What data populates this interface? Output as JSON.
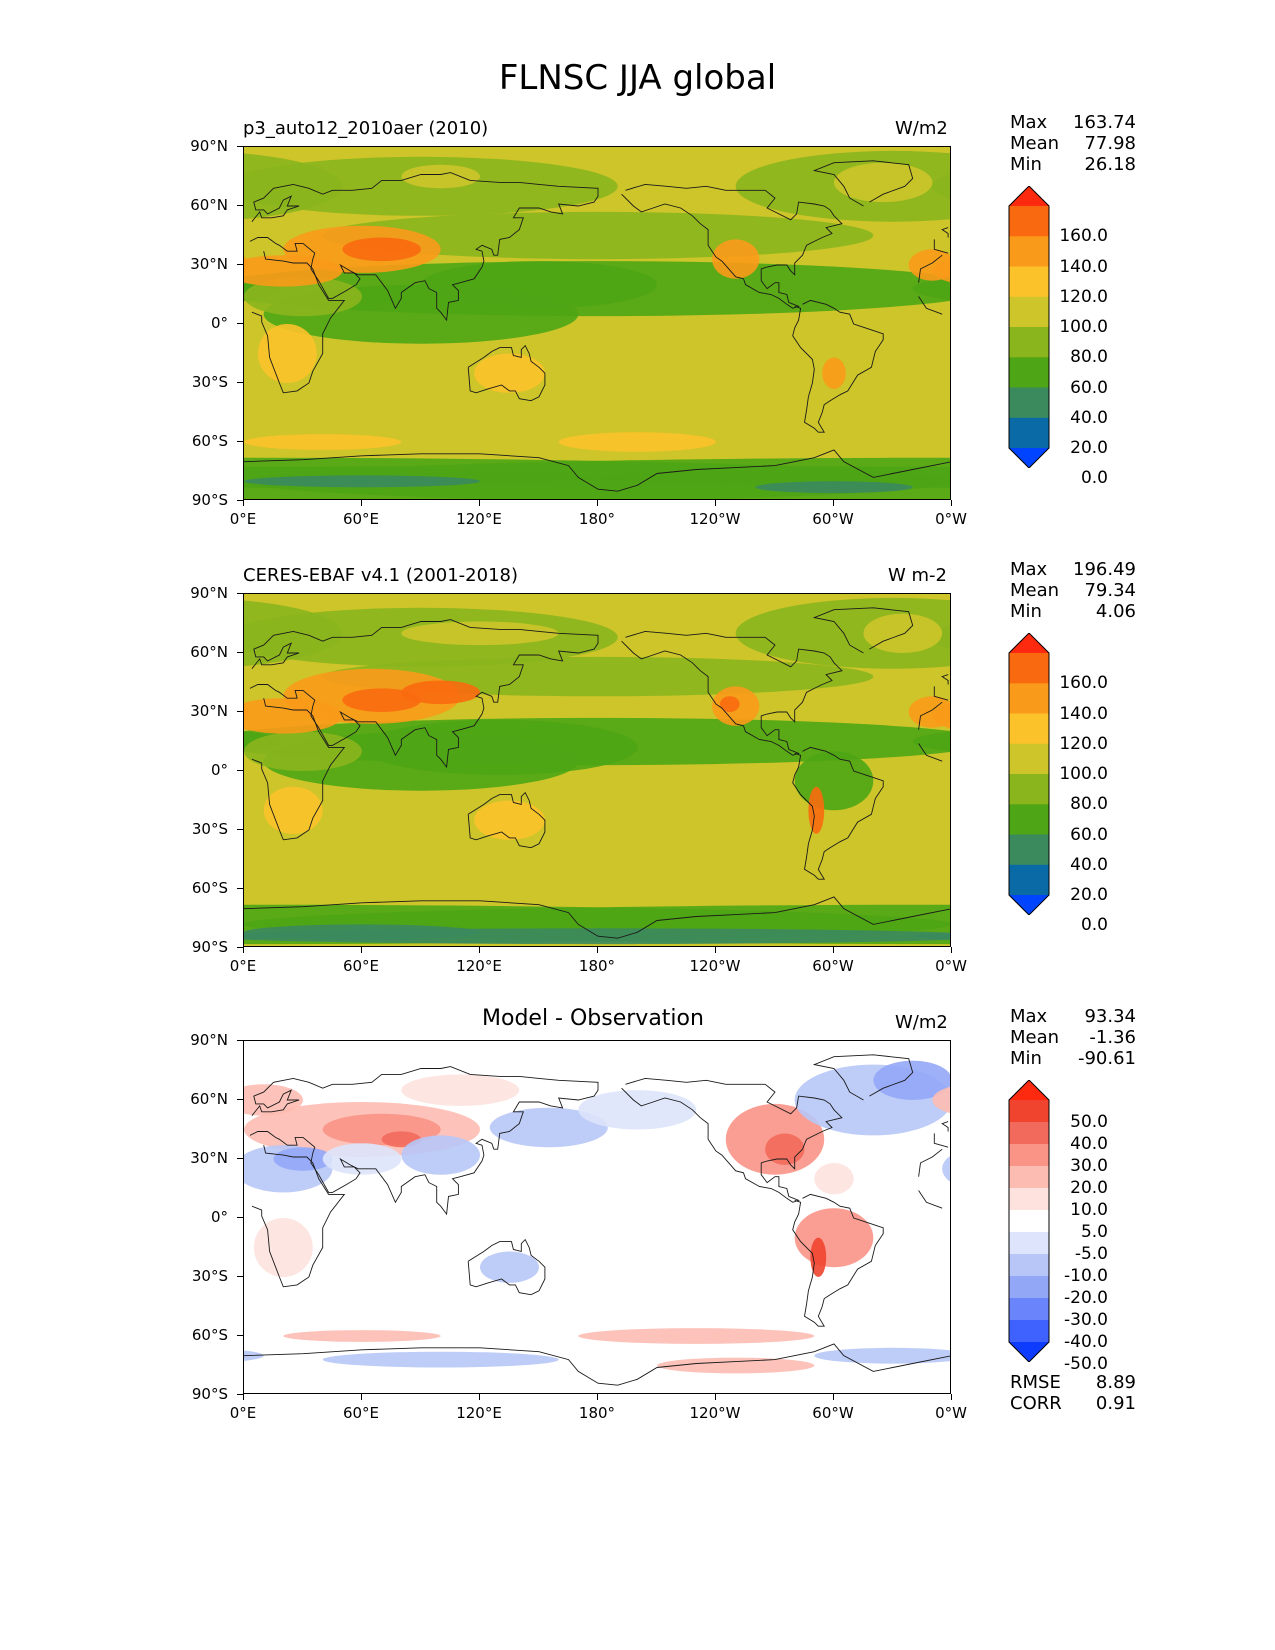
{
  "title": "FLNSC JJA global",
  "colors": {
    "seq": [
      "#0044ff",
      "#0a6aa6",
      "#3b8a5e",
      "#4ea515",
      "#8bb51d",
      "#cdc52a",
      "#fbc22a",
      "#fa9a1a",
      "#f96a10",
      "#fe2a10"
    ],
    "diff": [
      "#0e3cff",
      "#3f62ff",
      "#6a84fb",
      "#93a7f7",
      "#b7c6f7",
      "#dde4fb",
      "#ffffff",
      "#fde2de",
      "#fdbcb2",
      "#f99487",
      "#f26a5c",
      "#f0442f",
      "#fe2a10"
    ]
  },
  "chart_data": [
    {
      "type": "heatmap",
      "name": "model",
      "title": "p3_auto12_2010aer (2010)",
      "units": "W/m2",
      "stats": {
        "max_label": "Max",
        "max": "163.74",
        "mean_label": "Mean",
        "mean": "77.98",
        "min_label": "Min",
        "min": "26.18"
      },
      "x_ticks": [
        "0°E",
        "60°E",
        "120°E",
        "180°",
        "120°W",
        "60°W",
        "0°W"
      ],
      "y_ticks": [
        "90°N",
        "60°N",
        "30°N",
        "0°",
        "30°S",
        "60°S",
        "90°S"
      ],
      "xlim": [
        0,
        360
      ],
      "ylim": [
        -90,
        90
      ],
      "colorbar": {
        "levels": [
          "160.0",
          "140.0",
          "120.0",
          "100.0",
          "80.0",
          "60.0",
          "40.0",
          "20.0",
          "0.0"
        ],
        "extend": "both"
      }
    },
    {
      "type": "heatmap",
      "name": "observation",
      "title": "CERES-EBAF v4.1 (2001-2018)",
      "units": "W m-2",
      "stats": {
        "max_label": "Max",
        "max": "196.49",
        "mean_label": "Mean",
        "mean": "79.34",
        "min_label": "Min",
        "min": "4.06"
      },
      "x_ticks": [
        "0°E",
        "60°E",
        "120°E",
        "180°",
        "120°W",
        "60°W",
        "0°W"
      ],
      "y_ticks": [
        "90°N",
        "60°N",
        "30°N",
        "0°",
        "30°S",
        "60°S",
        "90°S"
      ],
      "xlim": [
        0,
        360
      ],
      "ylim": [
        -90,
        90
      ],
      "colorbar": {
        "levels": [
          "160.0",
          "140.0",
          "120.0",
          "100.0",
          "80.0",
          "60.0",
          "40.0",
          "20.0",
          "0.0"
        ],
        "extend": "both"
      }
    },
    {
      "type": "heatmap",
      "name": "difference",
      "title": "Model - Observation",
      "units": "W/m2",
      "stats": {
        "max_label": "Max",
        "max": "93.34",
        "mean_label": "Mean",
        "mean": "-1.36",
        "min_label": "Min",
        "min": "-90.61"
      },
      "extra_stats": {
        "rmse_label": "RMSE",
        "rmse": "8.89",
        "corr_label": "CORR",
        "corr": "0.91"
      },
      "x_ticks": [
        "0°E",
        "60°E",
        "120°E",
        "180°",
        "120°W",
        "60°W",
        "0°W"
      ],
      "y_ticks": [
        "90°N",
        "60°N",
        "30°N",
        "0°",
        "30°S",
        "60°S",
        "90°S"
      ],
      "xlim": [
        0,
        360
      ],
      "ylim": [
        -90,
        90
      ],
      "colorbar": {
        "levels": [
          "50.0",
          "40.0",
          "30.0",
          "20.0",
          "10.0",
          "5.0",
          "-5.0",
          "-10.0",
          "-20.0",
          "-30.0",
          "-40.0",
          "-50.0"
        ],
        "extend": "both"
      }
    }
  ]
}
